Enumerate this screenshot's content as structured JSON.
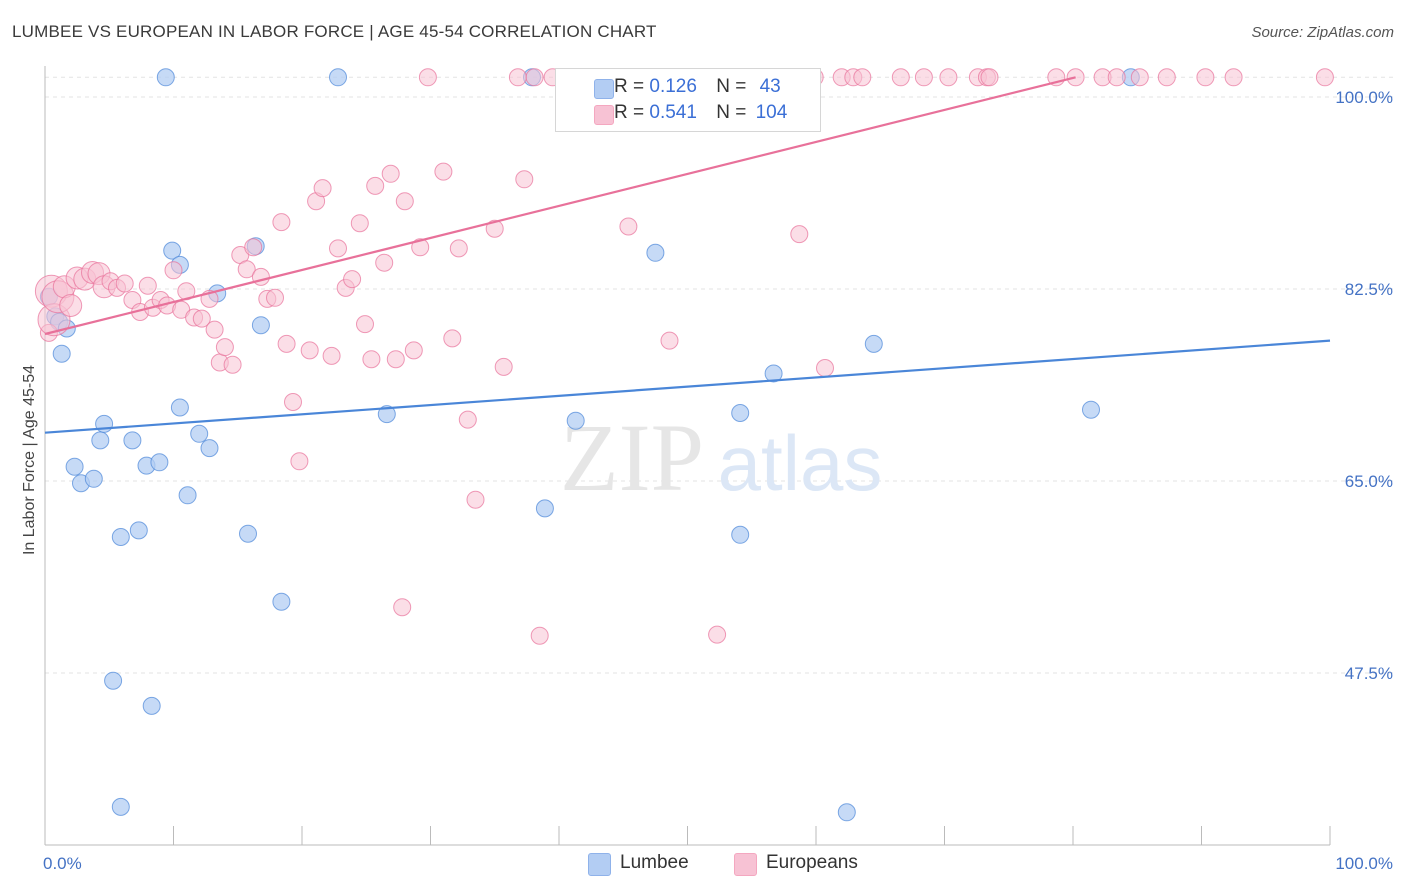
{
  "header": {
    "title": "LUMBEE VS EUROPEAN IN LABOR FORCE | AGE 45-54 CORRELATION CHART",
    "source": "Source: ZipAtlas.com"
  },
  "watermark": {
    "zip": "ZIP",
    "atlas": "atlas"
  },
  "legend": {
    "r_label": "R =",
    "n_label": "N =",
    "series": [
      {
        "r": "0.126",
        "n": "43",
        "color": "#8fb2ea"
      },
      {
        "r": "0.541",
        "n": "104",
        "color": "#f4a7c0"
      }
    ]
  },
  "chart_data": {
    "type": "scatter",
    "ylabel": "In Labor Force | Age 45-54",
    "xlim": [
      0,
      100
    ],
    "ylim": [
      29,
      100
    ],
    "x_tick_labels": [
      "0.0%",
      "100.0%"
    ],
    "y_ticks": [
      {
        "value": 100,
        "label": "100.0%"
      },
      {
        "value": 82.5,
        "label": "82.5%"
      },
      {
        "value": 65,
        "label": "65.0%"
      },
      {
        "value": 47.5,
        "label": "47.5%"
      }
    ],
    "grid": true,
    "series": [
      {
        "name": "Lumbee",
        "color": "#4a86d8",
        "fill": "#b3cdf3",
        "trend": {
          "x": [
            0,
            100
          ],
          "y": [
            69.4,
            77.8
          ]
        },
        "points": [
          [
            0.3,
            81.8
          ],
          [
            0.8,
            80.0
          ],
          [
            1.1,
            79.5
          ],
          [
            1.3,
            76.6
          ],
          [
            1.7,
            78.9
          ],
          [
            2.3,
            66.3
          ],
          [
            2.8,
            64.8
          ],
          [
            3.8,
            65.2
          ],
          [
            4.3,
            68.7
          ],
          [
            4.6,
            70.2
          ],
          [
            5.3,
            46.8
          ],
          [
            5.9,
            59.9
          ],
          [
            5.9,
            35.3
          ],
          [
            6.8,
            68.7
          ],
          [
            7.3,
            60.5
          ],
          [
            7.9,
            66.4
          ],
          [
            8.3,
            44.5
          ],
          [
            8.9,
            66.7
          ],
          [
            9.4,
            101.8
          ],
          [
            9.9,
            86.0
          ],
          [
            10.5,
            71.7
          ],
          [
            10.5,
            84.7
          ],
          [
            11.1,
            63.7
          ],
          [
            12.0,
            69.3
          ],
          [
            12.8,
            68.0
          ],
          [
            13.4,
            82.1
          ],
          [
            15.8,
            60.2
          ],
          [
            16.4,
            86.4
          ],
          [
            16.8,
            79.2
          ],
          [
            18.4,
            54.0
          ],
          [
            22.8,
            101.8
          ],
          [
            26.6,
            71.1
          ],
          [
            37.9,
            101.8
          ],
          [
            38.9,
            62.5
          ],
          [
            41.3,
            70.5
          ],
          [
            47.5,
            85.8
          ],
          [
            54.1,
            60.1
          ],
          [
            54.1,
            71.2
          ],
          [
            56.7,
            74.8
          ],
          [
            62.4,
            34.8
          ],
          [
            64.5,
            77.5
          ],
          [
            81.4,
            71.5
          ],
          [
            84.5,
            101.8
          ]
        ]
      },
      {
        "name": "Europeans",
        "color": "#e8719a",
        "fill": "#f7c2d4",
        "trend": {
          "x": [
            0,
            80.2
          ],
          "y": [
            78.4,
            101.8
          ]
        },
        "points": [
          [
            0.3,
            78.5
          ],
          [
            0.5,
            82.3
          ],
          [
            0.7,
            79.7
          ],
          [
            1.0,
            81.8
          ],
          [
            1.5,
            82.7
          ],
          [
            2.0,
            81.0
          ],
          [
            2.5,
            83.5
          ],
          [
            3.1,
            83.4
          ],
          [
            3.7,
            84.0
          ],
          [
            4.2,
            83.9
          ],
          [
            4.6,
            82.7
          ],
          [
            5.1,
            83.2
          ],
          [
            5.6,
            82.6
          ],
          [
            6.2,
            83.0
          ],
          [
            6.8,
            81.5
          ],
          [
            7.4,
            80.4
          ],
          [
            8.0,
            82.8
          ],
          [
            8.4,
            80.8
          ],
          [
            9.0,
            81.5
          ],
          [
            9.5,
            81.0
          ],
          [
            10.0,
            84.2
          ],
          [
            10.6,
            80.6
          ],
          [
            11.0,
            82.3
          ],
          [
            11.6,
            79.9
          ],
          [
            12.2,
            79.8
          ],
          [
            12.8,
            81.6
          ],
          [
            13.2,
            78.8
          ],
          [
            13.6,
            75.8
          ],
          [
            14.0,
            77.2
          ],
          [
            14.6,
            75.6
          ],
          [
            15.2,
            85.6
          ],
          [
            15.7,
            84.3
          ],
          [
            16.2,
            86.3
          ],
          [
            16.8,
            83.6
          ],
          [
            17.3,
            81.6
          ],
          [
            17.9,
            81.7
          ],
          [
            18.4,
            88.6
          ],
          [
            18.8,
            77.5
          ],
          [
            19.3,
            72.2
          ],
          [
            19.8,
            66.8
          ],
          [
            20.6,
            76.9
          ],
          [
            21.1,
            90.5
          ],
          [
            21.6,
            91.7
          ],
          [
            22.3,
            76.4
          ],
          [
            22.8,
            86.2
          ],
          [
            23.4,
            82.6
          ],
          [
            23.9,
            83.4
          ],
          [
            24.5,
            88.5
          ],
          [
            24.9,
            79.3
          ],
          [
            25.4,
            76.1
          ],
          [
            25.7,
            91.9
          ],
          [
            26.4,
            84.9
          ],
          [
            26.9,
            93.0
          ],
          [
            27.3,
            76.1
          ],
          [
            27.8,
            53.5
          ],
          [
            28.0,
            90.5
          ],
          [
            28.7,
            76.9
          ],
          [
            29.2,
            86.3
          ],
          [
            29.8,
            101.8
          ],
          [
            31.0,
            93.2
          ],
          [
            31.7,
            78.0
          ],
          [
            32.2,
            86.2
          ],
          [
            32.9,
            70.6
          ],
          [
            33.5,
            63.3
          ],
          [
            35.0,
            88.0
          ],
          [
            35.7,
            75.4
          ],
          [
            36.8,
            101.8
          ],
          [
            37.3,
            92.5
          ],
          [
            38.1,
            101.8
          ],
          [
            38.5,
            50.9
          ],
          [
            39.5,
            101.8
          ],
          [
            41.5,
            101.8
          ],
          [
            43.6,
            101.8
          ],
          [
            45.4,
            88.2
          ],
          [
            46.7,
            101.8
          ],
          [
            47.7,
            101.8
          ],
          [
            48.6,
            77.8
          ],
          [
            49.3,
            101.8
          ],
          [
            50.6,
            101.8
          ],
          [
            52.3,
            51.0
          ],
          [
            53.9,
            101.8
          ],
          [
            55.8,
            101.8
          ],
          [
            58.2,
            101.8
          ],
          [
            58.7,
            87.5
          ],
          [
            59.9,
            101.8
          ],
          [
            60.7,
            75.3
          ],
          [
            62.0,
            101.8
          ],
          [
            62.9,
            101.8
          ],
          [
            63.6,
            101.8
          ],
          [
            66.6,
            101.8
          ],
          [
            68.4,
            101.8
          ],
          [
            70.3,
            101.8
          ],
          [
            72.6,
            101.8
          ],
          [
            73.3,
            101.8
          ],
          [
            73.5,
            101.8
          ],
          [
            78.7,
            101.8
          ],
          [
            80.2,
            101.8
          ],
          [
            82.3,
            101.8
          ],
          [
            83.4,
            101.8
          ],
          [
            85.2,
            101.8
          ],
          [
            87.3,
            101.8
          ],
          [
            90.3,
            101.8
          ],
          [
            92.5,
            101.8
          ],
          [
            99.6,
            101.8
          ]
        ]
      }
    ]
  }
}
